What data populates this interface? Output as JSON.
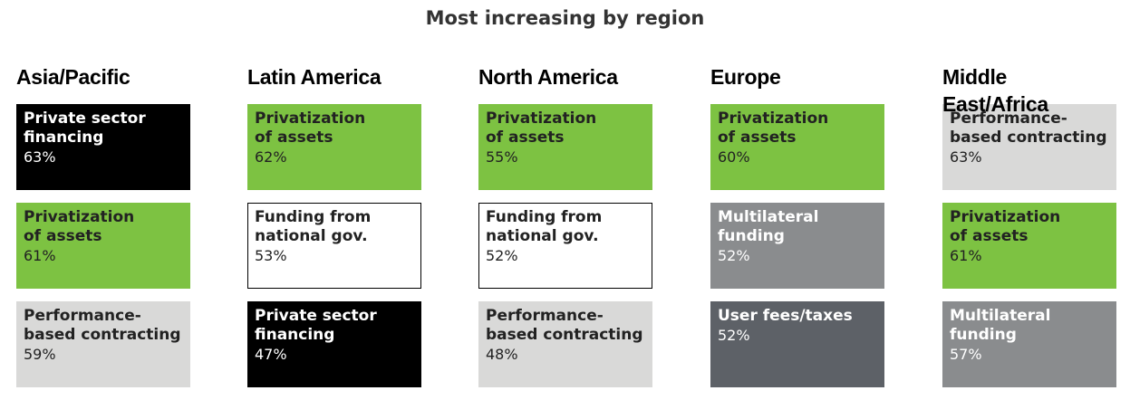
{
  "title": "Most increasing by region",
  "regions": [
    {
      "name": "Asia/Pacific",
      "items": [
        {
          "label": "Private sector\nfinancing",
          "value": "63%",
          "color": "#000000"
        },
        {
          "label": "Privatization\nof assets",
          "value": "61%",
          "color": "#7dc242"
        },
        {
          "label": "Performance-\nbased contracting",
          "value": "59%",
          "color": "#d9d9d8"
        }
      ]
    },
    {
      "name": "Latin America",
      "items": [
        {
          "label": "Privatization\nof assets",
          "value": "62%",
          "color": "#7dc242"
        },
        {
          "label": "Funding from\nnational gov.",
          "value": "53%",
          "color": "#ffffff"
        },
        {
          "label": "Private sector\nfinancing",
          "value": "47%",
          "color": "#000000"
        }
      ]
    },
    {
      "name": "North America",
      "items": [
        {
          "label": "Privatization\nof assets",
          "value": "55%",
          "color": "#7dc242"
        },
        {
          "label": "Funding from\nnational gov.",
          "value": "52%",
          "color": "#ffffff"
        },
        {
          "label": "Performance-\nbased contracting",
          "value": "48%",
          "color": "#d9d9d8"
        }
      ]
    },
    {
      "name": "Europe",
      "items": [
        {
          "label": "Privatization\nof assets",
          "value": "60%",
          "color": "#7dc242"
        },
        {
          "label": "Multilateral\nfunding",
          "value": "52%",
          "color": "#8a8c8e"
        },
        {
          "label": "User fees/taxes",
          "value": "52%",
          "color": "#5d6167"
        }
      ]
    },
    {
      "name": "Middle East/Africa",
      "items": [
        {
          "label": "Performance-\nbased contracting",
          "value": "63%",
          "color": "#d9d9d8"
        },
        {
          "label": "Privatization\nof assets",
          "value": "61%",
          "color": "#7dc242"
        },
        {
          "label": "Multilateral\nfunding",
          "value": "57%",
          "color": "#8a8c8e"
        }
      ]
    }
  ]
}
